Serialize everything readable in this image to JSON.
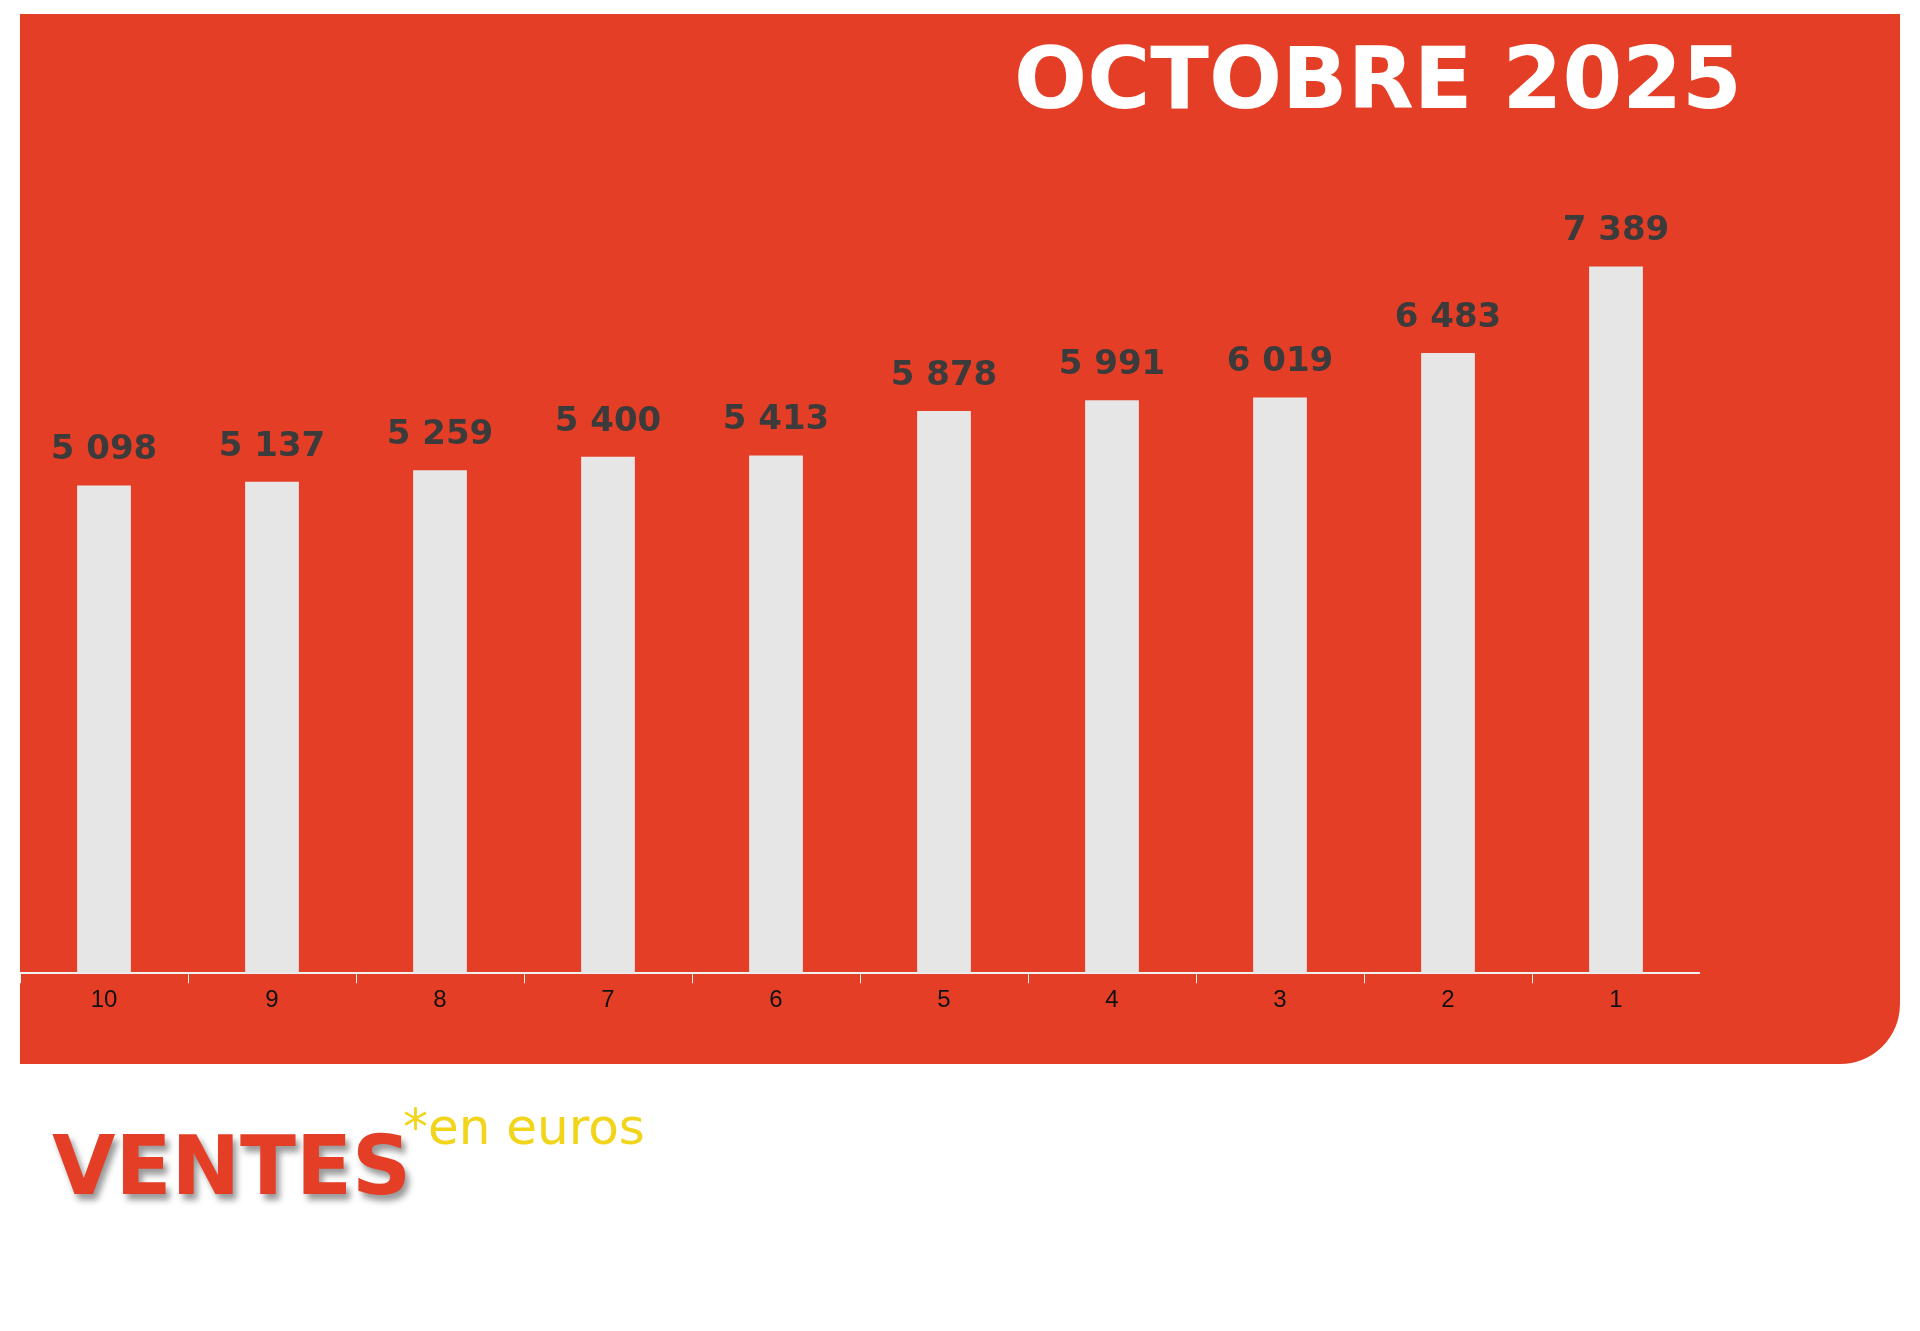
{
  "chart_data": {
    "type": "bar",
    "title": "OCTOBRE 2025",
    "subtitle": "VENTES",
    "annotations": [
      "*en euros"
    ],
    "categories": [
      "10",
      "9",
      "8",
      "7",
      "6",
      "5",
      "4",
      "3",
      "2",
      "1"
    ],
    "values": [
      5098,
      5137,
      5259,
      5400,
      5413,
      5878,
      5991,
      6019,
      6483,
      7389
    ],
    "value_labels": [
      "5 098",
      "5 137",
      "5 259",
      "5 400",
      "5 413",
      "5 878",
      "5 991",
      "6 019",
      "6 483",
      "7 389"
    ],
    "color": "#e6e6e6",
    "tick_labels": "x"
  }
}
